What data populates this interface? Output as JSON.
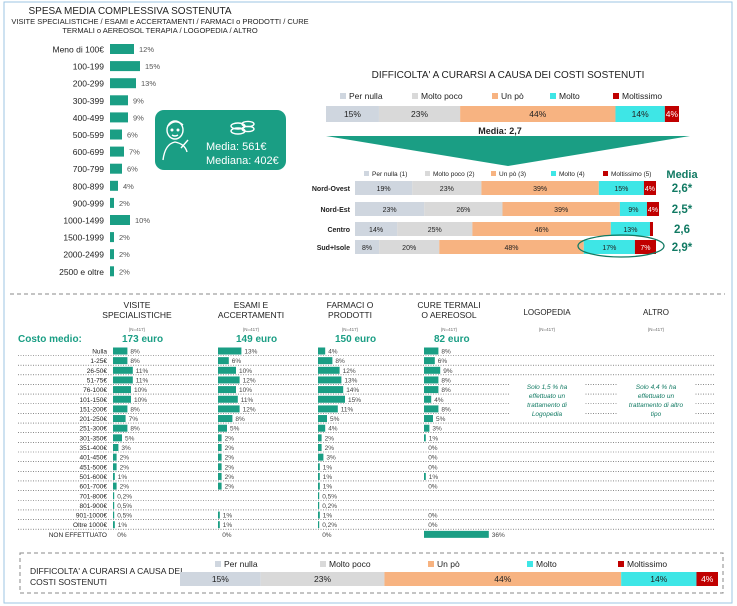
{
  "colors": {
    "teal": "#1a9e84",
    "per_nulla": "#cfd6df",
    "molto_poco": "#d9d9d9",
    "un_po": "#f7b381",
    "molto": "#3ee6e6",
    "moltissimo": "#c00000",
    "dark_teal": "#117a63"
  },
  "left_chart": {
    "title": "SPESA MEDIA COMPLESSIVA SOSTENUTA",
    "subtitle_1": "VISITE SPECIALISTICHE / ESAMI e ACCERTAMENTI / FARMACI o PRODOTTI / CURE",
    "subtitle_2": "TERMALI o AEREOSOL TERAPIA / LOGOPEDIA / ALTRO",
    "callout": {
      "icon": "person-with-coins-icon",
      "media": "Media: 561€",
      "mediana": "Mediana: 402€"
    }
  },
  "right_chart": {
    "title": "DIFFICOLTA' A CURARSI A CAUSA DEI COSTI SOSTENUTI",
    "legend": [
      "Per nulla",
      "Molto poco",
      "Un pò",
      "Molto",
      "Moltissimo"
    ],
    "media_label": "Media: 2,7",
    "breakdown_legend": [
      "Per nulla (1)",
      "Molto poco (2)",
      "Un pò (3)",
      "Molto (4)",
      "Moltissimo (5)"
    ],
    "media_header": "Media"
  },
  "bottom": {
    "costo_medio_label": "Costo medio:",
    "non_effettuato_label": "NON EFFETTUATO",
    "notes": {
      "logopedia": "Solo 1,5 % ha effettuato un trattamento di Logopedia",
      "altro": "Solo 4,4 % ha effettuato un trattamento di altro tipo"
    },
    "footer_title_1": "DIFFICOLTA' A CURARSI A CAUSA DEI",
    "footer_title_2": "COSTI SOSTENUTI"
  },
  "chart_data": [
    {
      "type": "bar",
      "title": "SPESA MEDIA COMPLESSIVA SOSTENUTA",
      "categories": [
        "Meno di 100€",
        "100-199",
        "200-299",
        "300-399",
        "400-499",
        "500-599",
        "600-699",
        "700-799",
        "800-899",
        "900-999",
        "1000-1499",
        "1500-1999",
        "2000-2499",
        "2500 e oltre"
      ],
      "values": [
        12,
        15,
        13,
        9,
        9,
        6,
        7,
        6,
        4,
        2,
        10,
        2,
        2,
        2
      ],
      "labels": [
        "12%",
        "15%",
        "13%",
        "9%",
        "9%",
        "6%",
        "7%",
        "6%",
        "4%",
        "2%",
        "10%",
        "2%",
        "2%",
        "2%"
      ]
    },
    {
      "type": "bar",
      "title": "DIFFICOLTA' A CURARSI A CAUSA DEI COSTI SOSTENUTI",
      "stacked": true,
      "series": [
        {
          "name": "Per nulla",
          "values": [
            15
          ]
        },
        {
          "name": "Molto poco",
          "values": [
            23
          ]
        },
        {
          "name": "Un pò",
          "values": [
            44
          ]
        },
        {
          "name": "Molto",
          "values": [
            14
          ]
        },
        {
          "name": "Moltissimo",
          "values": [
            4
          ]
        }
      ]
    },
    {
      "type": "bar",
      "stacked": true,
      "categories": [
        "Nord-Ovest",
        "Nord-Est",
        "Centro",
        "Sud+Isole"
      ],
      "series": [
        {
          "name": "Per nulla (1)",
          "values": [
            19,
            23,
            14,
            8
          ],
          "labels": [
            "19%",
            "23%",
            "14%",
            "8%"
          ]
        },
        {
          "name": "Molto poco (2)",
          "values": [
            23,
            26,
            25,
            20
          ],
          "labels": [
            "23%",
            "26%",
            "25%",
            "20%"
          ]
        },
        {
          "name": "Un pò (3)",
          "values": [
            39,
            39,
            46,
            48
          ],
          "labels": [
            "39%",
            "39%",
            "46%",
            "48%"
          ]
        },
        {
          "name": "Molto (4)",
          "values": [
            15,
            9,
            13,
            17
          ],
          "labels": [
            "15%",
            "9%",
            "13%",
            "17%"
          ]
        },
        {
          "name": "Moltissimo (5)",
          "values": [
            4,
            4,
            1,
            7
          ],
          "labels": [
            "4%",
            "4%",
            "",
            "7%"
          ]
        }
      ],
      "media": [
        "2,6*",
        "2,5*",
        "2,6",
        "2,9*"
      ]
    },
    {
      "type": "bar",
      "categories": [
        "Nulla",
        "1-25€",
        "26-50€",
        "51-75€",
        "76-100€",
        "101-150€",
        "151-200€",
        "201-250€",
        "251-300€",
        "301-350€",
        "351-400€",
        "401-450€",
        "451-500€",
        "501-600€",
        "601-700€",
        "701-800€",
        "801-900€",
        "901-1000€",
        "Oltre 1000€",
        "NON EFFETTUATO"
      ],
      "columns": [
        {
          "name": "VISITE SPECIALISTICHE",
          "base": "(N=417)",
          "costo_medio": "173 euro",
          "values": [
            8,
            8,
            11,
            11,
            10,
            10,
            8,
            7,
            8,
            5,
            3,
            2,
            2,
            1,
            2,
            0.2,
            0.5,
            0.5,
            1,
            0
          ],
          "labels": [
            "8%",
            "8%",
            "11%",
            "11%",
            "10%",
            "10%",
            "8%",
            "7%",
            "8%",
            "5%",
            "3%",
            "2%",
            "2%",
            "1%",
            "2%",
            "0,2%",
            "0,5%",
            "0,5%",
            "1%",
            "0%"
          ]
        },
        {
          "name": "ESAMI E ACCERTAMENTI",
          "base": "(N=417)",
          "costo_medio": "149 euro",
          "values": [
            13,
            6,
            10,
            12,
            10,
            11,
            12,
            8,
            5,
            2,
            2,
            2,
            2,
            2,
            2,
            0,
            0,
            1,
            1,
            0
          ],
          "labels": [
            "13%",
            "6%",
            "10%",
            "12%",
            "10%",
            "11%",
            "12%",
            "8%",
            "5%",
            "2%",
            "2%",
            "2%",
            "2%",
            "2%",
            "2%",
            "",
            "",
            "1%",
            "1%",
            "0%"
          ]
        },
        {
          "name": "FARMACI O PRODOTTI",
          "base": "(N=417)",
          "costo_medio": "150 euro",
          "values": [
            4,
            8,
            12,
            13,
            14,
            15,
            11,
            5,
            4,
            2,
            2,
            3,
            1,
            1,
            1,
            0.5,
            0.2,
            1,
            0.2,
            0
          ],
          "labels": [
            "4%",
            "8%",
            "12%",
            "13%",
            "14%",
            "15%",
            "11%",
            "5%",
            "4%",
            "2%",
            "2%",
            "3%",
            "1%",
            "1%",
            "1%",
            "0,5%",
            "0,2%",
            "1%",
            "0,2%",
            "0%"
          ]
        },
        {
          "name": "CURE TERMALI O AEREOSOL",
          "base": "(N=417)",
          "costo_medio": "82 euro",
          "values": [
            8,
            6,
            9,
            8,
            8,
            4,
            8,
            5,
            3,
            1,
            0,
            0,
            0,
            1,
            0,
            0,
            0,
            0,
            0,
            36
          ],
          "labels": [
            "8%",
            "6%",
            "9%",
            "8%",
            "8%",
            "4%",
            "8%",
            "5%",
            "3%",
            "1%",
            "0%",
            "0%",
            "0%",
            "1%",
            "0%",
            "",
            "",
            "0%",
            "0%",
            "36%"
          ]
        }
      ],
      "empty_columns": [
        {
          "name": "LOGOPEDIA",
          "base": "(N=417)"
        },
        {
          "name": "ALTRO",
          "base": "(N=417)"
        }
      ]
    }
  ]
}
